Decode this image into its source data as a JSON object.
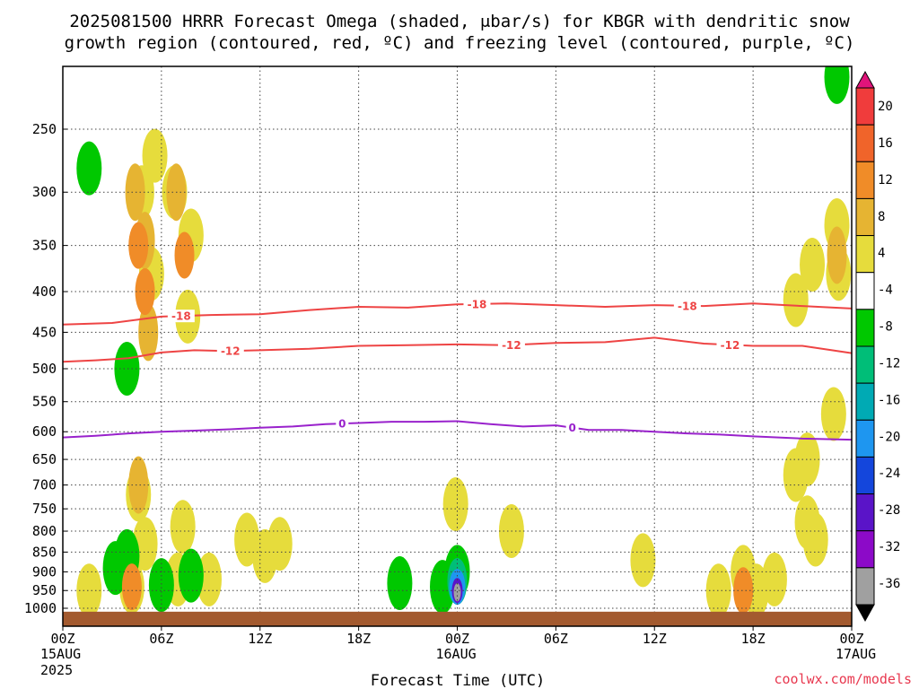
{
  "title_line1": "2025081500 HRRR Forecast Omega (shaded, μbar/s) for KBGR with dendritic snow",
  "title_line2": "growth region (contoured, red, ºC) and freezing level (contoured, purple, ºC)",
  "credit": "coolwx.com/models",
  "chart_data": {
    "type": "contour-time-height",
    "title": "2025081500 HRRR Forecast Omega (shaded, μbar/s) for KBGR with dendritic snow growth region (contoured, red, ºC) and freezing level (contoured, purple, ºC)",
    "xlabel": "Forecast Time (UTC)",
    "ylabel": "",
    "x_unit": "forecast hour",
    "y_unit": "hPa",
    "xlim": [
      0,
      48
    ],
    "ylim": [
      1050,
      200
    ],
    "y_scale": "log-pressure",
    "grid": true,
    "x_ticks": [
      {
        "hour": 0,
        "l1": "00Z",
        "l2": "15AUG",
        "l3": "2025"
      },
      {
        "hour": 6,
        "l1": "06Z",
        "l2": "",
        "l3": ""
      },
      {
        "hour": 12,
        "l1": "12Z",
        "l2": "",
        "l3": ""
      },
      {
        "hour": 18,
        "l1": "18Z",
        "l2": "",
        "l3": ""
      },
      {
        "hour": 24,
        "l1": "00Z",
        "l2": "16AUG",
        "l3": ""
      },
      {
        "hour": 30,
        "l1": "06Z",
        "l2": "",
        "l3": ""
      },
      {
        "hour": 36,
        "l1": "12Z",
        "l2": "",
        "l3": ""
      },
      {
        "hour": 42,
        "l1": "18Z",
        "l2": "",
        "l3": ""
      },
      {
        "hour": 48,
        "l1": "00Z",
        "l2": "17AUG",
        "l3": ""
      }
    ],
    "y_ticks": [
      250,
      300,
      350,
      400,
      450,
      500,
      550,
      600,
      650,
      700,
      750,
      800,
      850,
      900,
      950,
      1000
    ],
    "colorbar": {
      "labels": [
        "20",
        "16",
        "12",
        "8",
        "4",
        "-4",
        "-8",
        "-12",
        "-16",
        "-20",
        "-24",
        "-28",
        "-32",
        "-36"
      ],
      "colors": [
        "#e0147a",
        "#f03c3c",
        "#f0642a",
        "#f08c28",
        "#e6b432",
        "#e6dc3c",
        "#ffffff",
        "#00c800",
        "#00be78",
        "#00aab4",
        "#1e96f0",
        "#1446dc",
        "#5a14c8",
        "#8c0ac8",
        "#a0a0a0",
        "#000000"
      ]
    },
    "omega_features": [
      {
        "hour": 1.6,
        "p": 280,
        "v": -6
      },
      {
        "hour": 3.9,
        "p": 500,
        "v": -6
      },
      {
        "hour": 4.8,
        "p": 300,
        "v": 4
      },
      {
        "hour": 5.6,
        "p": 270,
        "v": 4
      },
      {
        "hour": 6.8,
        "p": 300,
        "v": 4
      },
      {
        "hour": 7.8,
        "p": 340,
        "v": 4
      },
      {
        "hour": 5.4,
        "p": 380,
        "v": 4
      },
      {
        "hour": 7.6,
        "p": 430,
        "v": 4
      },
      {
        "hour": 4.4,
        "p": 300,
        "v": 8
      },
      {
        "hour": 6.9,
        "p": 300,
        "v": 8
      },
      {
        "hour": 5.0,
        "p": 345,
        "v": 8
      },
      {
        "hour": 4.6,
        "p": 350,
        "v": 12
      },
      {
        "hour": 5.0,
        "p": 400,
        "v": 12
      },
      {
        "hour": 7.4,
        "p": 360,
        "v": 12
      },
      {
        "hour": 5.2,
        "p": 450,
        "v": 8
      },
      {
        "hour": 4.6,
        "p": 720,
        "v": 4
      },
      {
        "hour": 4.6,
        "p": 700,
        "v": 8
      },
      {
        "hour": 7.3,
        "p": 790,
        "v": 4
      },
      {
        "hour": 11.2,
        "p": 820,
        "v": 4
      },
      {
        "hour": 12.3,
        "p": 860,
        "v": 4
      },
      {
        "hour": 13.2,
        "p": 830,
        "v": 4
      },
      {
        "hour": 5.0,
        "p": 830,
        "v": 4
      },
      {
        "hour": 1.6,
        "p": 950,
        "v": 4
      },
      {
        "hour": 4.2,
        "p": 940,
        "v": 4
      },
      {
        "hour": 4.2,
        "p": 940,
        "v": 12
      },
      {
        "hour": 3.2,
        "p": 890,
        "v": -6
      },
      {
        "hour": 3.9,
        "p": 860,
        "v": -6
      },
      {
        "hour": 6.0,
        "p": 935,
        "v": -6
      },
      {
        "hour": 7.8,
        "p": 910,
        "v": -6
      },
      {
        "hour": 7.0,
        "p": 920,
        "v": 4
      },
      {
        "hour": 8.9,
        "p": 920,
        "v": 4
      },
      {
        "hour": 20.5,
        "p": 930,
        "v": -6
      },
      {
        "hour": 23.9,
        "p": 740,
        "v": 4
      },
      {
        "hour": 23.1,
        "p": 940,
        "v": -6
      },
      {
        "hour": 24.0,
        "p": 900,
        "v": -6
      },
      {
        "hour": 24.0,
        "p": 925,
        "v": -10
      },
      {
        "hour": 24.0,
        "p": 940,
        "v": -18
      },
      {
        "hour": 24.0,
        "p": 950,
        "v": -26
      },
      {
        "hour": 24.0,
        "p": 955,
        "v": -32
      },
      {
        "hour": 27.3,
        "p": 800,
        "v": 4
      },
      {
        "hour": 35.3,
        "p": 870,
        "v": 4
      },
      {
        "hour": 41.4,
        "p": 900,
        "v": 4
      },
      {
        "hour": 43.3,
        "p": 920,
        "v": 4
      },
      {
        "hour": 39.9,
        "p": 950,
        "v": 4
      },
      {
        "hour": 42.2,
        "p": 950,
        "v": 4
      },
      {
        "hour": 41.4,
        "p": 950,
        "v": 12
      },
      {
        "hour": 45.3,
        "p": 780,
        "v": 4
      },
      {
        "hour": 45.8,
        "p": 820,
        "v": 4
      },
      {
        "hour": 44.6,
        "p": 680,
        "v": 4
      },
      {
        "hour": 45.3,
        "p": 650,
        "v": 4
      },
      {
        "hour": 46.9,
        "p": 570,
        "v": 4
      },
      {
        "hour": 44.6,
        "p": 410,
        "v": 4
      },
      {
        "hour": 45.6,
        "p": 370,
        "v": 4
      },
      {
        "hour": 47.1,
        "p": 330,
        "v": 4
      },
      {
        "hour": 47.2,
        "p": 380,
        "v": 4
      },
      {
        "hour": 47.1,
        "p": 360,
        "v": 8
      },
      {
        "hour": 47.1,
        "p": 215,
        "v": -6
      }
    ],
    "contours": [
      {
        "label": "-18",
        "color": "#ee4444",
        "label_hours": [
          7.2,
          25.2,
          38.0
        ],
        "points": [
          [
            0,
            440
          ],
          [
            3,
            438
          ],
          [
            6,
            430
          ],
          [
            9,
            428
          ],
          [
            12,
            427
          ],
          [
            15,
            422
          ],
          [
            18,
            418
          ],
          [
            21,
            419
          ],
          [
            24,
            415
          ],
          [
            27,
            414
          ],
          [
            30,
            416
          ],
          [
            33,
            418
          ],
          [
            36,
            416
          ],
          [
            39,
            417
          ],
          [
            42,
            414
          ],
          [
            45,
            417
          ],
          [
            48,
            420
          ]
        ]
      },
      {
        "label": "-12",
        "color": "#ee4444",
        "label_hours": [
          10.2,
          27.3,
          40.6
        ],
        "points": [
          [
            0,
            490
          ],
          [
            2,
            488
          ],
          [
            4,
            485
          ],
          [
            6,
            477
          ],
          [
            8,
            474
          ],
          [
            10,
            475
          ],
          [
            12,
            474
          ],
          [
            15,
            472
          ],
          [
            18,
            468
          ],
          [
            21,
            467
          ],
          [
            24,
            466
          ],
          [
            27,
            467
          ],
          [
            30,
            464
          ],
          [
            33,
            463
          ],
          [
            36,
            457
          ],
          [
            39,
            465
          ],
          [
            42,
            468
          ],
          [
            45,
            468
          ],
          [
            48,
            478
          ]
        ]
      },
      {
        "label": "0",
        "color": "#9922cc",
        "label_hours": [
          17.0,
          31.0
        ],
        "points": [
          [
            0,
            610
          ],
          [
            2,
            607
          ],
          [
            4,
            603
          ],
          [
            6,
            600
          ],
          [
            8,
            598
          ],
          [
            10,
            596
          ],
          [
            12,
            593
          ],
          [
            14,
            591
          ],
          [
            16,
            587
          ],
          [
            18,
            585
          ],
          [
            20,
            583
          ],
          [
            22,
            583
          ],
          [
            24,
            582
          ],
          [
            26,
            587
          ],
          [
            28,
            591
          ],
          [
            30,
            589
          ],
          [
            32,
            597
          ],
          [
            34,
            597
          ],
          [
            36,
            600
          ],
          [
            38,
            603
          ],
          [
            40,
            605
          ],
          [
            42,
            608
          ],
          [
            45,
            612
          ],
          [
            48,
            614
          ]
        ]
      }
    ],
    "terrain_p": 1010
  }
}
